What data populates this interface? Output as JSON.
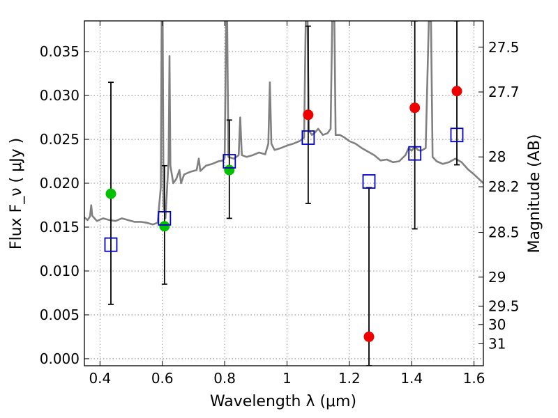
{
  "chart_data": {
    "type": "scatter",
    "xlabel": "Wavelength  λ (μm)",
    "ylabel": "Flux  F_ν  ( μJy )",
    "y2label": "Magnitude (AB)",
    "xlim": [
      0.35,
      1.63
    ],
    "ylim": [
      -0.0008,
      0.0385
    ],
    "grid": true,
    "x_ticks": [
      0.4,
      0.6,
      0.8,
      1.0,
      1.2,
      1.4,
      1.6
    ],
    "x_tick_labels": [
      "0.4",
      "0.6",
      "0.8",
      "1",
      "1.2",
      "1.4",
      "1.6"
    ],
    "y_ticks": [
      0.0,
      0.005,
      0.01,
      0.015,
      0.02,
      0.025,
      0.03,
      0.035
    ],
    "y_tick_labels": [
      "0.000",
      "0.005",
      "0.010",
      "0.015",
      "0.020",
      "0.025",
      "0.030",
      "0.035"
    ],
    "y2_ticks": [
      {
        "label": "27.5",
        "flux": 0.0355
      },
      {
        "label": "27.7",
        "flux": 0.0304
      },
      {
        "label": "28",
        "flux": 0.023
      },
      {
        "label": "28.2",
        "flux": 0.0196
      },
      {
        "label": "28.5",
        "flux": 0.0144
      },
      {
        "label": "29",
        "flux": 0.0093
      },
      {
        "label": "29.5",
        "flux": 0.006
      },
      {
        "label": "30",
        "flux": 0.0039
      },
      {
        "label": "31",
        "flux": 0.0017
      }
    ],
    "colors": {
      "spectrum": "#808080",
      "observed_green": "#00c000",
      "observed_red": "#ee0000",
      "model": "#0000cc",
      "errorbar": "#000000"
    },
    "spectrum_points": [
      [
        0.35,
        0.0161
      ],
      [
        0.36,
        0.0158
      ],
      [
        0.368,
        0.0162
      ],
      [
        0.372,
        0.0175
      ],
      [
        0.375,
        0.0163
      ],
      [
        0.39,
        0.0157
      ],
      [
        0.41,
        0.016
      ],
      [
        0.43,
        0.0158
      ],
      [
        0.45,
        0.0157
      ],
      [
        0.47,
        0.016
      ],
      [
        0.49,
        0.0158
      ],
      [
        0.51,
        0.0156
      ],
      [
        0.53,
        0.0156
      ],
      [
        0.55,
        0.0155
      ],
      [
        0.57,
        0.0153
      ],
      [
        0.585,
        0.0155
      ],
      [
        0.595,
        0.0195
      ],
      [
        0.598,
        0.0385
      ],
      [
        0.601,
        0.0385
      ],
      [
        0.604,
        0.0175
      ],
      [
        0.61,
        0.016
      ],
      [
        0.62,
        0.0225
      ],
      [
        0.623,
        0.0345
      ],
      [
        0.626,
        0.022
      ],
      [
        0.635,
        0.02
      ],
      [
        0.645,
        0.0205
      ],
      [
        0.655,
        0.0215
      ],
      [
        0.66,
        0.02
      ],
      [
        0.67,
        0.021
      ],
      [
        0.69,
        0.0213
      ],
      [
        0.71,
        0.0215
      ],
      [
        0.717,
        0.0228
      ],
      [
        0.722,
        0.0214
      ],
      [
        0.74,
        0.022
      ],
      [
        0.76,
        0.0222
      ],
      [
        0.78,
        0.0225
      ],
      [
        0.795,
        0.0226
      ],
      [
        0.8,
        0.0229
      ],
      [
        0.805,
        0.0385
      ],
      [
        0.808,
        0.0385
      ],
      [
        0.812,
        0.023
      ],
      [
        0.83,
        0.0228
      ],
      [
        0.845,
        0.0232
      ],
      [
        0.85,
        0.0275
      ],
      [
        0.855,
        0.0232
      ],
      [
        0.87,
        0.023
      ],
      [
        0.89,
        0.0232
      ],
      [
        0.91,
        0.0235
      ],
      [
        0.93,
        0.0233
      ],
      [
        0.94,
        0.0245
      ],
      [
        0.945,
        0.0315
      ],
      [
        0.95,
        0.0245
      ],
      [
        0.96,
        0.0238
      ],
      [
        0.98,
        0.024
      ],
      [
        1.0,
        0.0243
      ],
      [
        1.02,
        0.0245
      ],
      [
        1.04,
        0.0248
      ],
      [
        1.055,
        0.0252
      ],
      [
        1.06,
        0.0385
      ],
      [
        1.066,
        0.0385
      ],
      [
        1.07,
        0.026
      ],
      [
        1.08,
        0.0255
      ],
      [
        1.09,
        0.0258
      ],
      [
        1.1,
        0.0262
      ],
      [
        1.115,
        0.0255
      ],
      [
        1.13,
        0.0257
      ],
      [
        1.14,
        0.0262
      ],
      [
        1.145,
        0.0385
      ],
      [
        1.152,
        0.0385
      ],
      [
        1.156,
        0.0255
      ],
      [
        1.17,
        0.0255
      ],
      [
        1.185,
        0.0252
      ],
      [
        1.2,
        0.0248
      ],
      [
        1.22,
        0.0245
      ],
      [
        1.24,
        0.024
      ],
      [
        1.26,
        0.0236
      ],
      [
        1.28,
        0.0232
      ],
      [
        1.3,
        0.0226
      ],
      [
        1.32,
        0.0227
      ],
      [
        1.34,
        0.0224
      ],
      [
        1.36,
        0.0225
      ],
      [
        1.38,
        0.0232
      ],
      [
        1.39,
        0.024
      ],
      [
        1.4,
        0.0237
      ],
      [
        1.41,
        0.0242
      ],
      [
        1.42,
        0.0238
      ],
      [
        1.43,
        0.0237
      ],
      [
        1.445,
        0.024
      ],
      [
        1.455,
        0.0385
      ],
      [
        1.462,
        0.0385
      ],
      [
        1.467,
        0.023
      ],
      [
        1.48,
        0.0225
      ],
      [
        1.5,
        0.0222
      ],
      [
        1.52,
        0.0224
      ],
      [
        1.54,
        0.0228
      ],
      [
        1.56,
        0.0224
      ],
      [
        1.58,
        0.0216
      ],
      [
        1.6,
        0.021
      ],
      [
        1.615,
        0.0205
      ],
      [
        1.63,
        0.02
      ]
    ],
    "series": [
      {
        "marker": "green-circle",
        "points": [
          {
            "x": 0.435,
            "y": 0.0188
          },
          {
            "x": 0.607,
            "y": 0.0151
          },
          {
            "x": 0.815,
            "y": 0.0215
          }
        ]
      },
      {
        "marker": "red-circle",
        "points": [
          {
            "x": 1.068,
            "y": 0.0278
          },
          {
            "x": 1.263,
            "y": 0.0025
          },
          {
            "x": 1.41,
            "y": 0.0286
          },
          {
            "x": 1.545,
            "y": 0.0305
          }
        ]
      },
      {
        "marker": "blue-open-square",
        "points": [
          {
            "x": 0.435,
            "y": 0.013
          },
          {
            "x": 0.607,
            "y": 0.016
          },
          {
            "x": 0.815,
            "y": 0.0225
          },
          {
            "x": 1.068,
            "y": 0.0252
          },
          {
            "x": 1.263,
            "y": 0.0202
          },
          {
            "x": 1.41,
            "y": 0.0234
          },
          {
            "x": 1.545,
            "y": 0.0255
          }
        ]
      }
    ],
    "error_bars": [
      {
        "x": 0.435,
        "low": 0.0062,
        "high": 0.0315
      },
      {
        "x": 0.607,
        "low": 0.0085,
        "high": 0.022
      },
      {
        "x": 0.815,
        "low": 0.016,
        "high": 0.0272
      },
      {
        "x": 1.068,
        "low": 0.0177,
        "high": 0.0379
      },
      {
        "x": 1.263,
        "low": -0.0008,
        "high": 0.0195
      },
      {
        "x": 1.41,
        "low": 0.0148,
        "high": 0.0385
      },
      {
        "x": 1.545,
        "low": 0.0221,
        "high": 0.0385
      }
    ]
  }
}
